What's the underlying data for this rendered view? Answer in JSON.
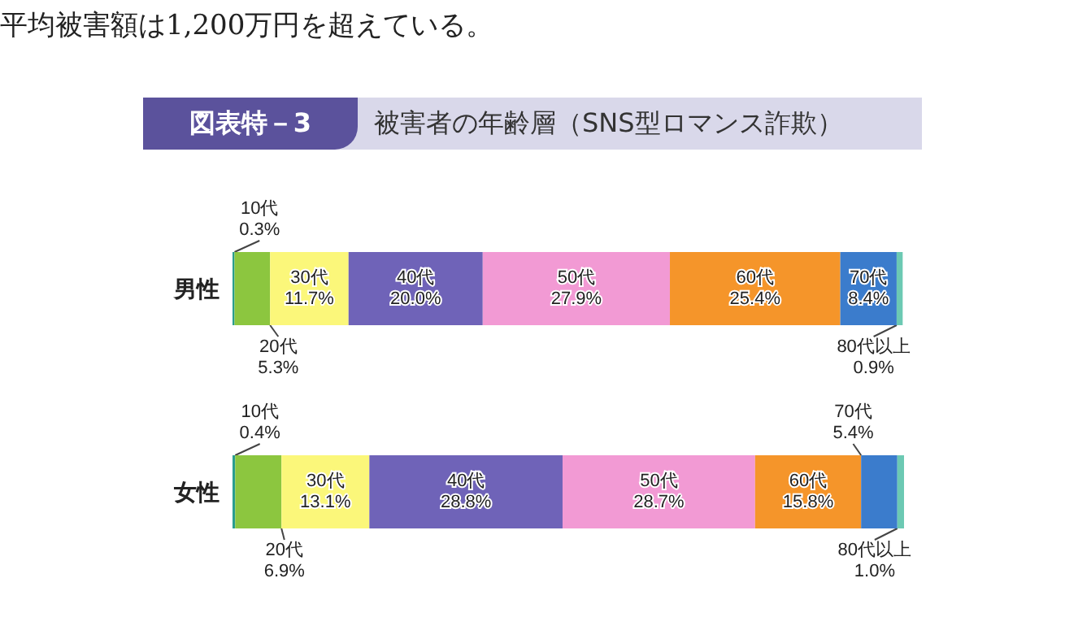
{
  "chart_data": {
    "type": "bar",
    "orientation": "horizontal",
    "stacked": true,
    "title": "被害者の年齢層（SNS型ロマンス詐欺）",
    "annotations": [
      "図表特－3",
      "平均被害額は1,200万円を超えている。"
    ],
    "categories": [
      "男性",
      "女性"
    ],
    "series": [
      {
        "name": "10代",
        "color": "#2a9d8f",
        "values": [
          0.3,
          0.4
        ],
        "value_labels": [
          "0.3%",
          "0.4%"
        ]
      },
      {
        "name": "20代",
        "color": "#8cc63f",
        "values": [
          5.3,
          6.9
        ],
        "value_labels": [
          "5.3%",
          "6.9%"
        ]
      },
      {
        "name": "30代",
        "color": "#fbf77a",
        "values": [
          11.7,
          13.1
        ],
        "value_labels": [
          "11.7%",
          "13.1%"
        ]
      },
      {
        "name": "40代",
        "color": "#6f63b8",
        "values": [
          20.0,
          28.8
        ],
        "value_labels": [
          "20.0%",
          "28.8%"
        ]
      },
      {
        "name": "50代",
        "color": "#f29ad4",
        "values": [
          27.9,
          28.7
        ],
        "value_labels": [
          "27.9%",
          "28.7%"
        ]
      },
      {
        "name": "60代",
        "color": "#f5952a",
        "values": [
          25.4,
          15.8
        ],
        "value_labels": [
          "25.4%",
          "15.8%"
        ]
      },
      {
        "name": "70代",
        "color": "#3b7ccc",
        "values": [
          8.4,
          5.4
        ],
        "value_labels": [
          "8.4%",
          "5.4%"
        ]
      },
      {
        "name": "80代以上",
        "color": "#6cc9b3",
        "values": [
          0.9,
          1.0
        ],
        "value_labels": [
          "0.9%",
          "1.0%"
        ]
      }
    ],
    "legend": false
  }
}
